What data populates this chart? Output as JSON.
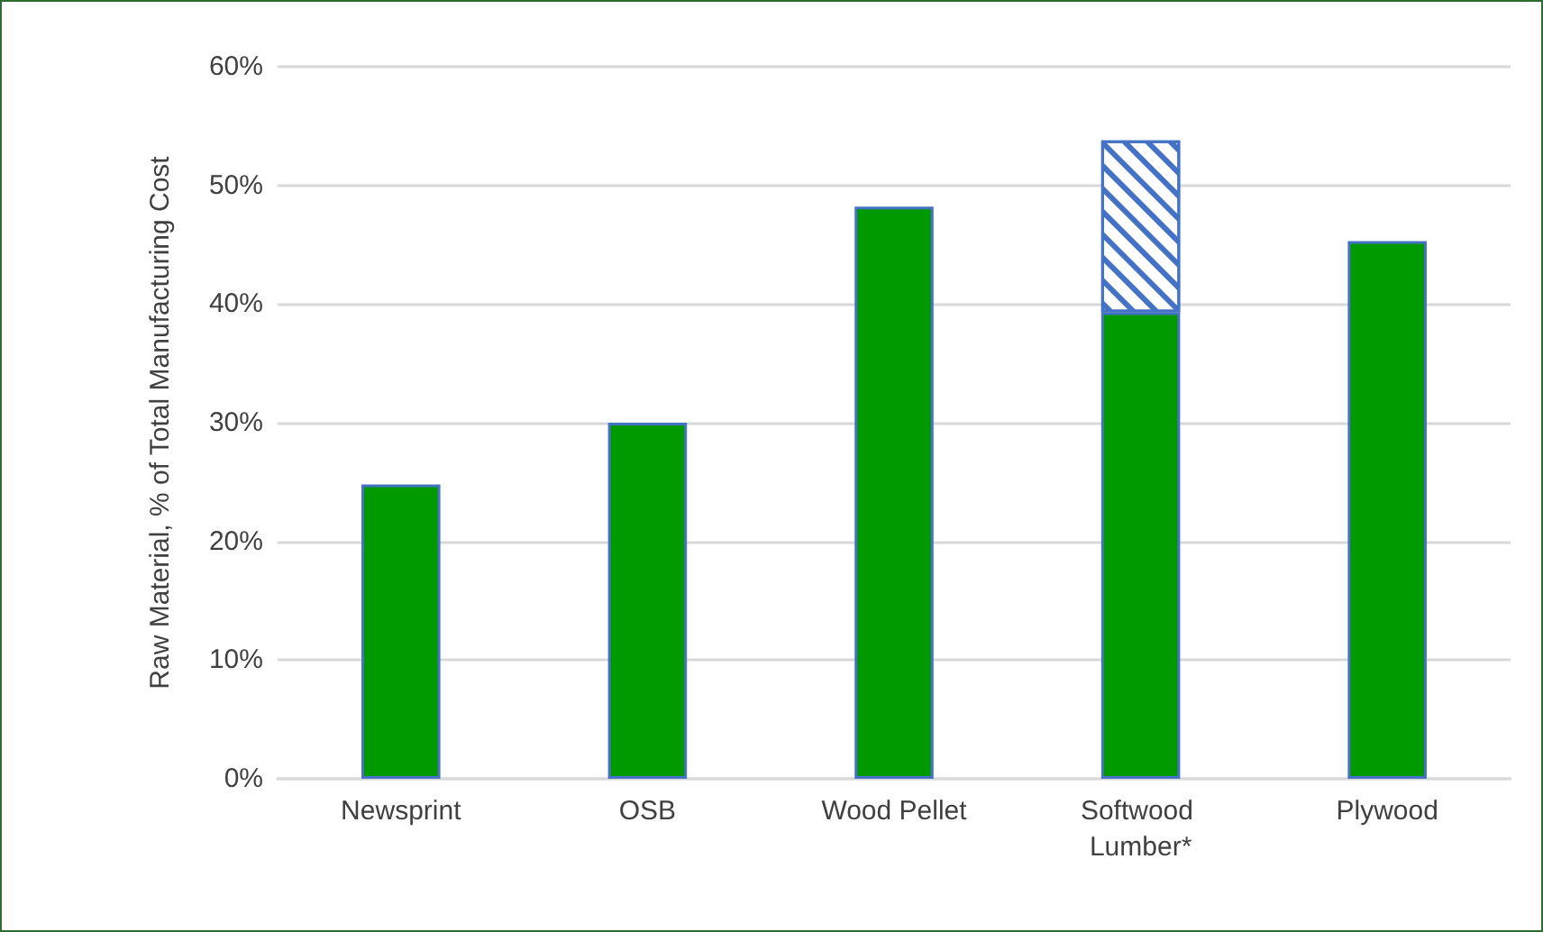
{
  "chart_data": {
    "type": "bar",
    "stacked": true,
    "ylabel": "Raw Material, % of Total Manufacturing Cost",
    "categories": [
      "Newsprint",
      "OSB",
      "Wood Pellet",
      "Softwood Lumber*",
      "Plywood"
    ],
    "series": [
      {
        "color": "#009900",
        "values": [
          24.8,
          30.0,
          48.2,
          39.3,
          45.3
        ]
      },
      {
        "color": "#4472c4",
        "values": [
          null,
          null,
          null,
          14.5,
          null
        ]
      }
    ],
    "ylim": [
      0,
      60
    ],
    "yticks": [
      {
        "value": 0,
        "label": "0%"
      },
      {
        "value": 10,
        "label": "10%"
      },
      {
        "value": 20,
        "label": "20%"
      },
      {
        "value": 30,
        "label": "30%"
      },
      {
        "value": 40,
        "label": "40%"
      },
      {
        "value": 50,
        "label": "50%"
      },
      {
        "value": 60,
        "label": "60%"
      }
    ],
    "grid": "y"
  }
}
